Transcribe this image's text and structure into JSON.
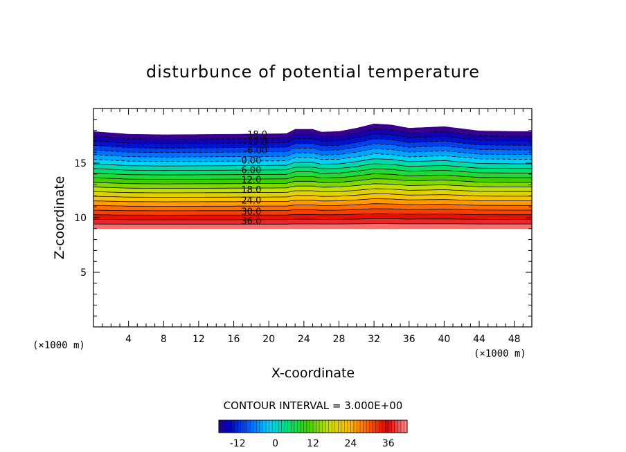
{
  "chart_data": {
    "type": "contour",
    "title": "disturbunce of potential temperature",
    "xlabel": "X-coordinate",
    "ylabel": "Z-coordinate",
    "x_unit_label": "(×1000 m)",
    "z_unit_label": "(×1000 m)",
    "xlim": [
      0,
      50
    ],
    "ylim": [
      0,
      20
    ],
    "x_ticks": [
      "4",
      "8",
      "12",
      "16",
      "20",
      "24",
      "28",
      "32",
      "36",
      "40",
      "44",
      "48"
    ],
    "y_ticks": [
      "5",
      "10",
      "15"
    ],
    "contour_interval_label": "CONTOUR INTERVAL = 3.000E+00",
    "contour_interval": 3.0,
    "field_range": [
      -21,
      42
    ],
    "lower_boundary_z": 9.0,
    "top_boundary_profile": [
      [
        0,
        17.9
      ],
      [
        4,
        17.65
      ],
      [
        8,
        17.6
      ],
      [
        16,
        17.65
      ],
      [
        22,
        17.7
      ],
      [
        23,
        18.1
      ],
      [
        25,
        18.1
      ],
      [
        26,
        17.85
      ],
      [
        28,
        17.9
      ],
      [
        30,
        18.2
      ],
      [
        32,
        18.6
      ],
      [
        34,
        18.5
      ],
      [
        36,
        18.2
      ],
      [
        40,
        18.35
      ],
      [
        44,
        17.95
      ],
      [
        48,
        17.9
      ],
      [
        50,
        17.9
      ]
    ],
    "contour_labels": [
      {
        "value": -18.0,
        "text": "-18.0",
        "x": 18.5,
        "z": 17.65
      },
      {
        "value": -12.0,
        "text": "-12.0",
        "x": 18.5,
        "z": 16.95
      },
      {
        "value": -6.0,
        "text": "-6.00",
        "x": 18.5,
        "z": 16.2
      },
      {
        "value": 0.0,
        "text": "0.00",
        "x": 18,
        "z": 15.3
      },
      {
        "value": 6.0,
        "text": "6.00",
        "x": 18,
        "z": 14.4
      },
      {
        "value": 12.0,
        "text": "12.0",
        "x": 18,
        "z": 13.5
      },
      {
        "value": 18.0,
        "text": "18.0",
        "x": 18,
        "z": 12.6
      },
      {
        "value": 24.0,
        "text": "24.0",
        "x": 18,
        "z": 11.6
      },
      {
        "value": 30.0,
        "text": "30.0",
        "x": 18,
        "z": 10.6
      },
      {
        "value": 36.0,
        "text": "36.0",
        "x": 18,
        "z": 9.7
      }
    ],
    "colorbar": {
      "ticks": [
        "-12",
        "0",
        "12",
        "24",
        "36"
      ],
      "tick_values": [
        -12,
        0,
        12,
        24,
        36
      ],
      "min": -18,
      "max": 42,
      "colormap": [
        "#4a0080",
        "#0000c0",
        "#0060ff",
        "#00d0ff",
        "#00e070",
        "#40d000",
        "#c8e000",
        "#ffc000",
        "#ff6000",
        "#e00000",
        "#ff9090"
      ]
    }
  }
}
